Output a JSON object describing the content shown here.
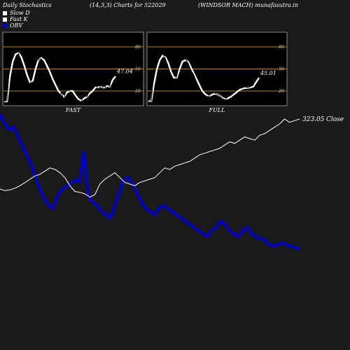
{
  "header": {
    "title": "Daily Stochastics",
    "params": "(14,3,3) Charts for 522029",
    "company": "(WINDSOR MACH) munafasutra.in"
  },
  "legend": [
    {
      "label": "Slow  D",
      "color": "#ffffff"
    },
    {
      "label": "Fast K",
      "color": "#ffffff"
    },
    {
      "label": "OBV",
      "color": "#0000cc"
    }
  ],
  "colors": {
    "background": "#1a1a1a",
    "panel": "#000000",
    "level_line": "#b8860b",
    "obv": "#0000cc",
    "price": "#ffffff"
  },
  "chart_data": [
    {
      "type": "line",
      "label": "FAST",
      "ylim": [
        0,
        100
      ],
      "yticks": [
        20,
        50,
        80
      ],
      "levels": [
        20,
        50,
        80
      ],
      "last_value_label": "47.04",
      "series": [
        {
          "name": "Fast K",
          "values": [
            3,
            8,
            62,
            70,
            75,
            72,
            55,
            40,
            28,
            26,
            48,
            72,
            62,
            64,
            58,
            42,
            40,
            28,
            22,
            10,
            18,
            8,
            30,
            20,
            12,
            10,
            6,
            5,
            18,
            12,
            22,
            25,
            28,
            22,
            28,
            22,
            30,
            26,
            48,
            47
          ]
        },
        {
          "name": "Slow  D",
          "values": [
            5,
            6,
            40,
            60,
            70,
            72,
            66,
            55,
            42,
            32,
            34,
            50,
            62,
            65,
            62,
            54,
            46,
            36,
            28,
            20,
            16,
            12,
            18,
            20,
            20,
            14,
            9,
            7,
            10,
            12,
            17,
            20,
            25,
            25,
            26,
            24,
            27,
            26,
            35,
            40
          ]
        }
      ]
    },
    {
      "type": "line",
      "label": "FULL",
      "ylim": [
        0,
        100
      ],
      "yticks": [
        20,
        50,
        80
      ],
      "levels": [
        20,
        50,
        80
      ],
      "last_value_label": "45.01",
      "series": [
        {
          "name": "Fast K",
          "values": [
            4,
            6,
            48,
            62,
            70,
            72,
            64,
            52,
            40,
            32,
            40,
            58,
            64,
            64,
            58,
            48,
            42,
            32,
            24,
            16,
            14,
            12,
            16,
            18,
            16,
            14,
            10,
            8,
            12,
            14,
            18,
            22,
            24,
            24,
            26,
            24,
            26,
            28,
            40,
            45
          ]
        },
        {
          "name": "Slow  D",
          "values": [
            6,
            6,
            30,
            50,
            62,
            68,
            66,
            58,
            46,
            38,
            38,
            50,
            60,
            62,
            60,
            52,
            44,
            36,
            28,
            20,
            16,
            13,
            14,
            16,
            16,
            14,
            11,
            9,
            10,
            12,
            15,
            18,
            21,
            23,
            24,
            24,
            25,
            26,
            32,
            38
          ]
        }
      ]
    },
    {
      "type": "line",
      "label": "OBV / Close",
      "last_value_label": "323.05",
      "last_value_suffix": "Close",
      "series": [
        {
          "name": "OBV",
          "values": [
            88,
            82,
            78,
            80,
            74,
            68,
            62,
            56,
            48,
            40,
            34,
            30,
            28,
            36,
            40,
            42,
            44,
            46,
            45,
            64,
            36,
            32,
            30,
            26,
            24,
            22,
            30,
            38,
            46,
            48,
            44,
            38,
            32,
            28,
            26,
            24,
            28,
            30,
            28,
            26,
            24,
            22,
            20,
            18,
            16,
            14,
            12,
            10,
            14,
            16,
            20,
            18,
            14,
            12,
            10,
            14,
            16,
            12,
            10,
            9,
            8,
            5,
            4,
            5,
            6,
            5,
            4,
            3,
            2
          ]
        },
        {
          "name": "Close",
          "values": [
            2,
            4,
            3,
            1,
            -2,
            -6,
            -10,
            -14,
            -16,
            -20,
            -24,
            -22,
            -18,
            -12,
            -2,
            5,
            6,
            8,
            12,
            9,
            -4,
            -10,
            -14,
            -18,
            -12,
            -6,
            -4,
            -2,
            -6,
            -8,
            -10,
            -12,
            -18,
            -24,
            -22,
            -26,
            -28,
            -30,
            -32,
            -36,
            -40,
            -42,
            -44,
            -46,
            -48,
            -52,
            -56,
            -54,
            -58,
            -62,
            -60,
            -58,
            -64,
            -66,
            -70,
            -74,
            -78,
            -84,
            -80,
            -82,
            -84
          ]
        }
      ]
    }
  ]
}
